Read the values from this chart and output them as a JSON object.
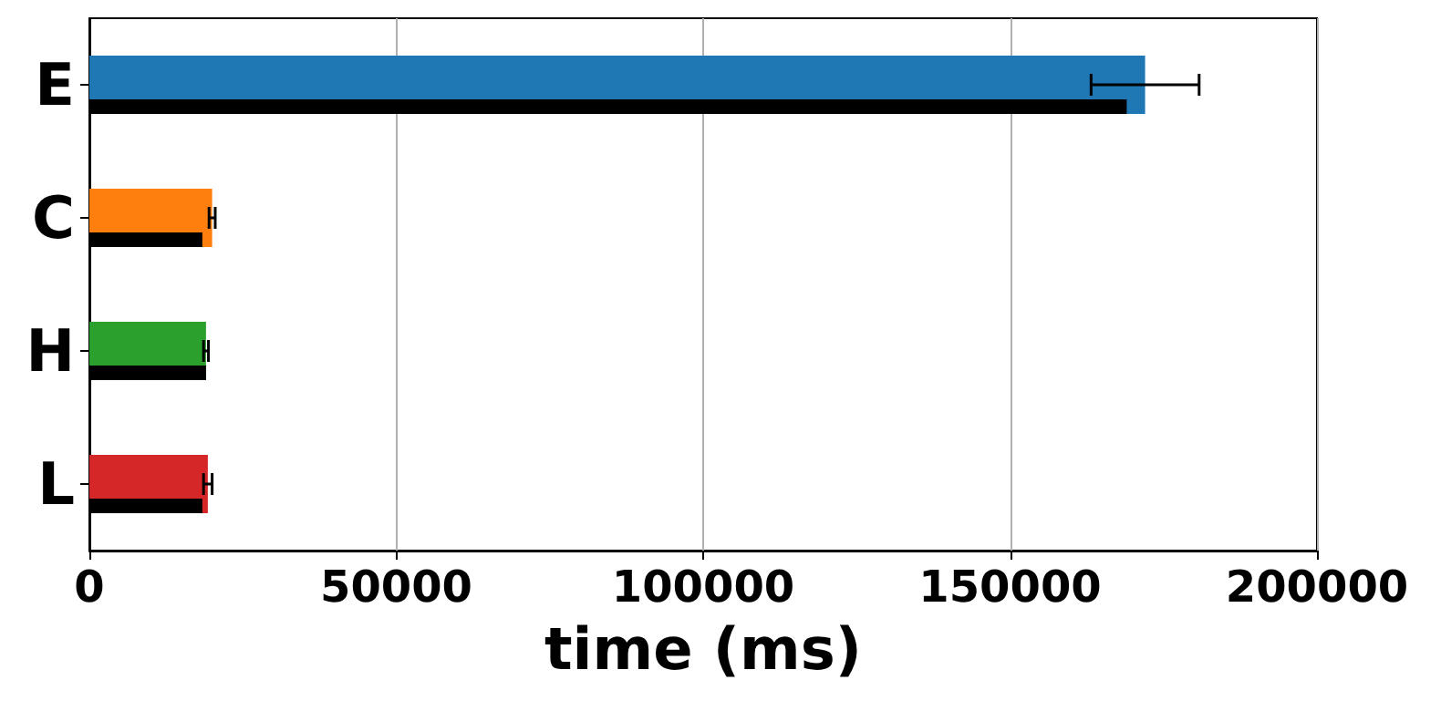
{
  "chart_data": {
    "type": "bar",
    "orientation": "horizontal",
    "categories": [
      "E",
      "C",
      "H",
      "L"
    ],
    "xlabel": "time (ms)",
    "xlim": [
      0,
      200000
    ],
    "xticks": [
      0,
      50000,
      100000,
      150000,
      200000
    ],
    "grid": "x",
    "series": [
      {
        "colors": [
          "#1f77b4",
          "#ff7f0e",
          "#2ca02c",
          "#d62728"
        ],
        "values": [
          172000,
          20000,
          19000,
          19300
        ],
        "errors": [
          8800,
          500,
          400,
          700
        ]
      },
      {
        "color": "#000000",
        "values": [
          169000,
          18400,
          19000,
          18400
        ]
      }
    ]
  }
}
